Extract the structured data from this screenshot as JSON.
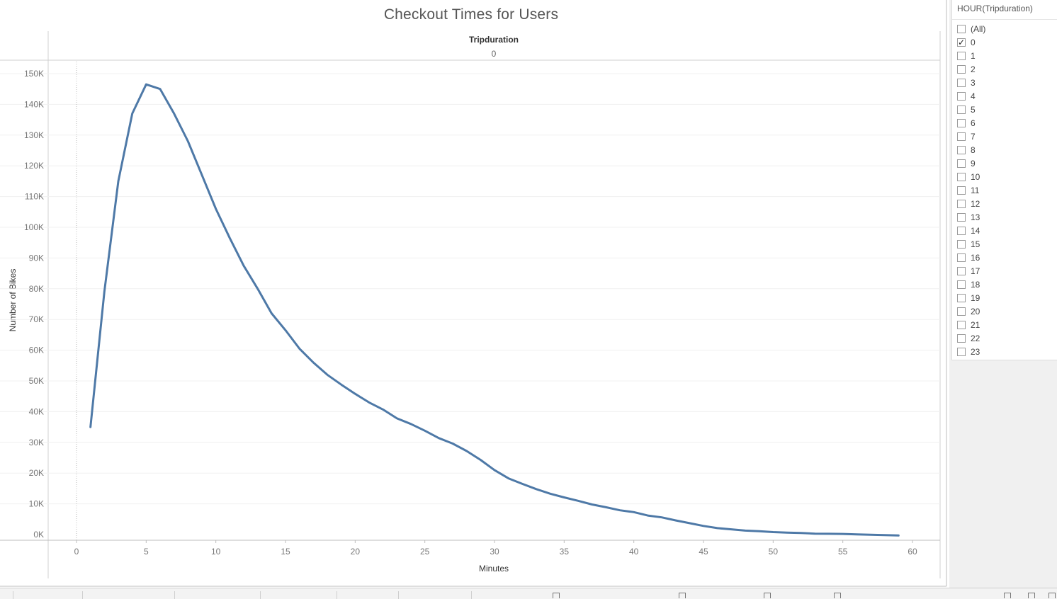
{
  "title": "Checkout Times for Users",
  "filter": {
    "title": "HOUR(Tripduration)",
    "items": [
      {
        "label": "(All)",
        "checked": false
      },
      {
        "label": "0",
        "checked": true
      },
      {
        "label": "1",
        "checked": false
      },
      {
        "label": "2",
        "checked": false
      },
      {
        "label": "3",
        "checked": false
      },
      {
        "label": "4",
        "checked": false
      },
      {
        "label": "5",
        "checked": false
      },
      {
        "label": "6",
        "checked": false
      },
      {
        "label": "7",
        "checked": false
      },
      {
        "label": "8",
        "checked": false
      },
      {
        "label": "9",
        "checked": false
      },
      {
        "label": "10",
        "checked": false
      },
      {
        "label": "11",
        "checked": false
      },
      {
        "label": "12",
        "checked": false
      },
      {
        "label": "13",
        "checked": false
      },
      {
        "label": "14",
        "checked": false
      },
      {
        "label": "15",
        "checked": false
      },
      {
        "label": "16",
        "checked": false
      },
      {
        "label": "17",
        "checked": false
      },
      {
        "label": "18",
        "checked": false
      },
      {
        "label": "19",
        "checked": false
      },
      {
        "label": "20",
        "checked": false
      },
      {
        "label": "21",
        "checked": false
      },
      {
        "label": "22",
        "checked": false
      },
      {
        "label": "23",
        "checked": false
      }
    ]
  },
  "chart_data": {
    "type": "line",
    "title": "Checkout Times for Users",
    "column_header": "Tripduration",
    "column_value": "0",
    "xlabel": "Minutes",
    "ylabel": "Number of Bikes",
    "xlim": [
      -2,
      62
    ],
    "ylim": [
      0,
      155000
    ],
    "x_ticks": [
      0,
      5,
      10,
      15,
      20,
      25,
      30,
      35,
      40,
      45,
      50,
      55,
      60
    ],
    "y_ticks": [
      0,
      10000,
      20000,
      30000,
      40000,
      50000,
      60000,
      70000,
      80000,
      90000,
      100000,
      110000,
      120000,
      130000,
      140000,
      150000
    ],
    "y_tick_labels": [
      "0K",
      "10K",
      "20K",
      "30K",
      "40K",
      "50K",
      "60K",
      "70K",
      "80K",
      "90K",
      "100K",
      "110K",
      "120K",
      "130K",
      "140K",
      "150K"
    ],
    "grid": true,
    "line_color": "#4e79a7",
    "series": [
      {
        "x": [
          1,
          2,
          3,
          4,
          5,
          6,
          7,
          8,
          9,
          10,
          11,
          12,
          13,
          14,
          15,
          16,
          17,
          18,
          19,
          20,
          21,
          22,
          23,
          24,
          25,
          26,
          27,
          28,
          29,
          30,
          31,
          32,
          33,
          34,
          35,
          36,
          37,
          38,
          39,
          40,
          41,
          42,
          43,
          44,
          45,
          46,
          47,
          48,
          49,
          50,
          51,
          52,
          53,
          54,
          55,
          56,
          57,
          58,
          59
        ],
        "values": [
          35000,
          79000,
          115000,
          137000,
          146500,
          145000,
          137000,
          128000,
          117000,
          106000,
          96500,
          87500,
          80000,
          72000,
          66500,
          60500,
          56000,
          52000,
          48800,
          45800,
          43000,
          40700,
          37800,
          36000,
          33800,
          31400,
          29600,
          27200,
          24300,
          21000,
          18300,
          16500,
          14800,
          13300,
          12100,
          11000,
          9800,
          8900,
          7900,
          7300,
          6200,
          5600,
          4600,
          3700,
          2800,
          2100,
          1700,
          1300,
          1100,
          800,
          650,
          500,
          300,
          250,
          200,
          50,
          -50,
          -150,
          -300
        ]
      }
    ]
  }
}
